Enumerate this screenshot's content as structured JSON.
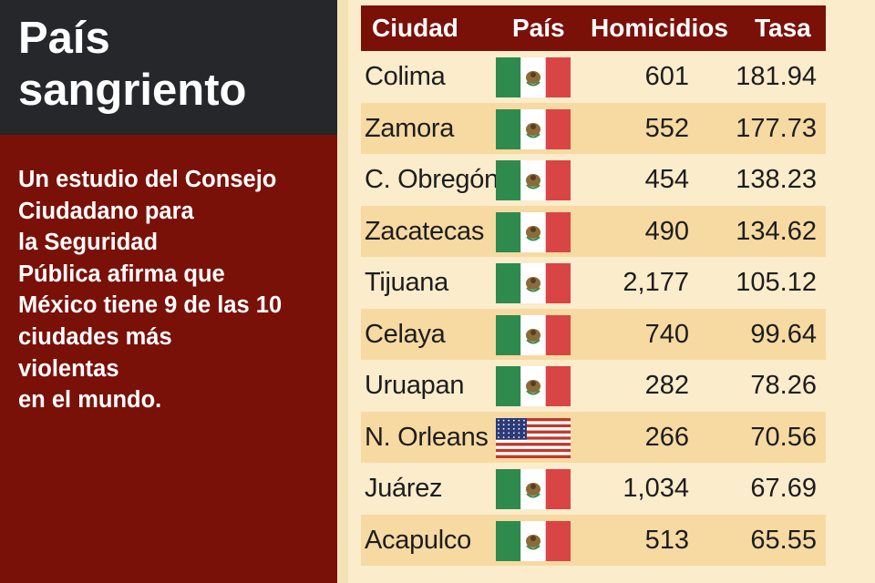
{
  "title_lines": [
    "País",
    "sangriento"
  ],
  "description_lines": [
    "Un estudio del Consejo",
    "Ciudadano para",
    "la Seguridad",
    "Pública afirma que",
    "México tiene 9 de las 10",
    "ciudades más",
    "violentas",
    "en el mundo."
  ],
  "colors": {
    "header_bg": "#7a1109",
    "title_bg": "#25272b",
    "row_alt": "#f6daa2",
    "page_bg": "#fbeccb"
  },
  "chart_data": {
    "type": "table",
    "columns": [
      "Ciudad",
      "País",
      "Homicidios",
      "Tasa"
    ],
    "rows": [
      {
        "ciudad": "Colima",
        "pais": "mexico-flag",
        "homicidios": "601",
        "tasa": "181.94"
      },
      {
        "ciudad": "Zamora",
        "pais": "mexico-flag",
        "homicidios": "552",
        "tasa": "177.73"
      },
      {
        "ciudad": "C. Obregón",
        "pais": "mexico-flag",
        "homicidios": "454",
        "tasa": "138.23"
      },
      {
        "ciudad": "Zacatecas",
        "pais": "mexico-flag",
        "homicidios": "490",
        "tasa": "134.62"
      },
      {
        "ciudad": "Tijuana",
        "pais": "mexico-flag",
        "homicidios": "2,177",
        "tasa": "105.12"
      },
      {
        "ciudad": "Celaya",
        "pais": "mexico-flag",
        "homicidios": "740",
        "tasa": "99.64"
      },
      {
        "ciudad": "Uruapan",
        "pais": "mexico-flag",
        "homicidios": "282",
        "tasa": "78.26"
      },
      {
        "ciudad": "N. Orleans",
        "pais": "usa-flag",
        "homicidios": "266",
        "tasa": "70.56"
      },
      {
        "ciudad": "Juárez",
        "pais": "mexico-flag",
        "homicidios": "1,034",
        "tasa": "67.69"
      },
      {
        "ciudad": "Acapulco",
        "pais": "mexico-flag",
        "homicidios": "513",
        "tasa": "65.55"
      }
    ]
  }
}
